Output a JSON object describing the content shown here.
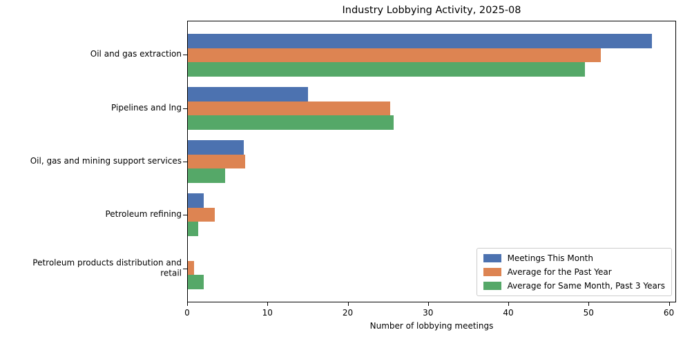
{
  "title": "Industry Lobbying Activity, 2025-08",
  "chart_data": {
    "type": "bar",
    "orientation": "horizontal",
    "title": "Industry Lobbying Activity, 2025-08",
    "xlabel": "Number of lobbying meetings",
    "ylabel": "",
    "categories": [
      "Oil and gas extraction",
      "Pipelines and lng",
      "Oil, gas and mining support services",
      "Petroleum refining",
      "Petroleum products distribution and\nretail"
    ],
    "series": [
      {
        "name": "Meetings This Month",
        "color": "#4C72B0",
        "values": [
          58,
          15,
          7,
          2,
          0
        ]
      },
      {
        "name": "Average for the Past Year",
        "color": "#DD8452",
        "values": [
          51.6,
          25.3,
          7.2,
          3.4,
          0.8
        ]
      },
      {
        "name": "Average for Same Month, Past 3 Years",
        "color": "#55A868",
        "values": [
          49.6,
          25.7,
          4.7,
          1.3,
          2
        ]
      }
    ],
    "xlim": [
      0,
      60.9
    ],
    "xticks": [
      0,
      10,
      20,
      30,
      40,
      50,
      60
    ],
    "grid": false,
    "legend_position": "lower right",
    "axis_color": "#000000",
    "background_color": "#ffffff"
  }
}
